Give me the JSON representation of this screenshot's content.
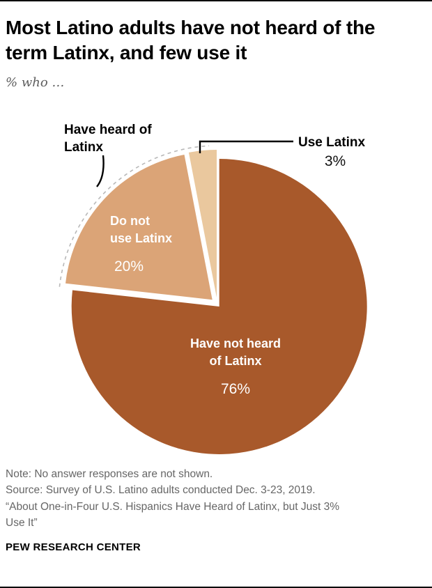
{
  "header": {
    "title": "Most Latino adults have not heard of the term Latinx, and few use it",
    "subtitle": "% who …"
  },
  "chart_data": {
    "type": "pie",
    "title": "Most Latino adults have not heard of the term Latinx, and few use it",
    "units": "%",
    "slices": [
      {
        "name": "have-not-heard",
        "category": "Have not heard of Latinx",
        "value": 76,
        "pct_label": "76%",
        "color": "#a8592b",
        "label_line1": "Have not heard",
        "label_line2": "of Latinx",
        "text_color": "#ffffff"
      },
      {
        "name": "do-not-use",
        "category": "Do not use Latinx",
        "value": 20,
        "pct_label": "20%",
        "color": "#dba477",
        "label_line1": "Do not",
        "label_line2": "use Latinx",
        "text_color": "#ffffff"
      },
      {
        "name": "use",
        "category": "Use Latinx",
        "value": 3,
        "pct_label": "3%",
        "color": "#eac89e"
      }
    ],
    "callouts": {
      "heard_line1": "Have heard of",
      "heard_line2": "Latinx",
      "use_label": "Use Latinx",
      "use_pct": "3%"
    },
    "layout_hints": {
      "direction": "clockwise",
      "start": "top",
      "exploded": true,
      "dashed_arc_over": "heard slices"
    }
  },
  "footer": {
    "note": "Note: No answer responses are not shown.",
    "source": "Source: Survey of U.S. Latino adults conducted Dec. 3-23, 2019.",
    "quote_line1": "“About One-in-Four U.S. Hispanics Have Heard of Latinx, but Just 3%",
    "quote_line2": "Use It”",
    "brand": "PEW RESEARCH CENTER"
  }
}
